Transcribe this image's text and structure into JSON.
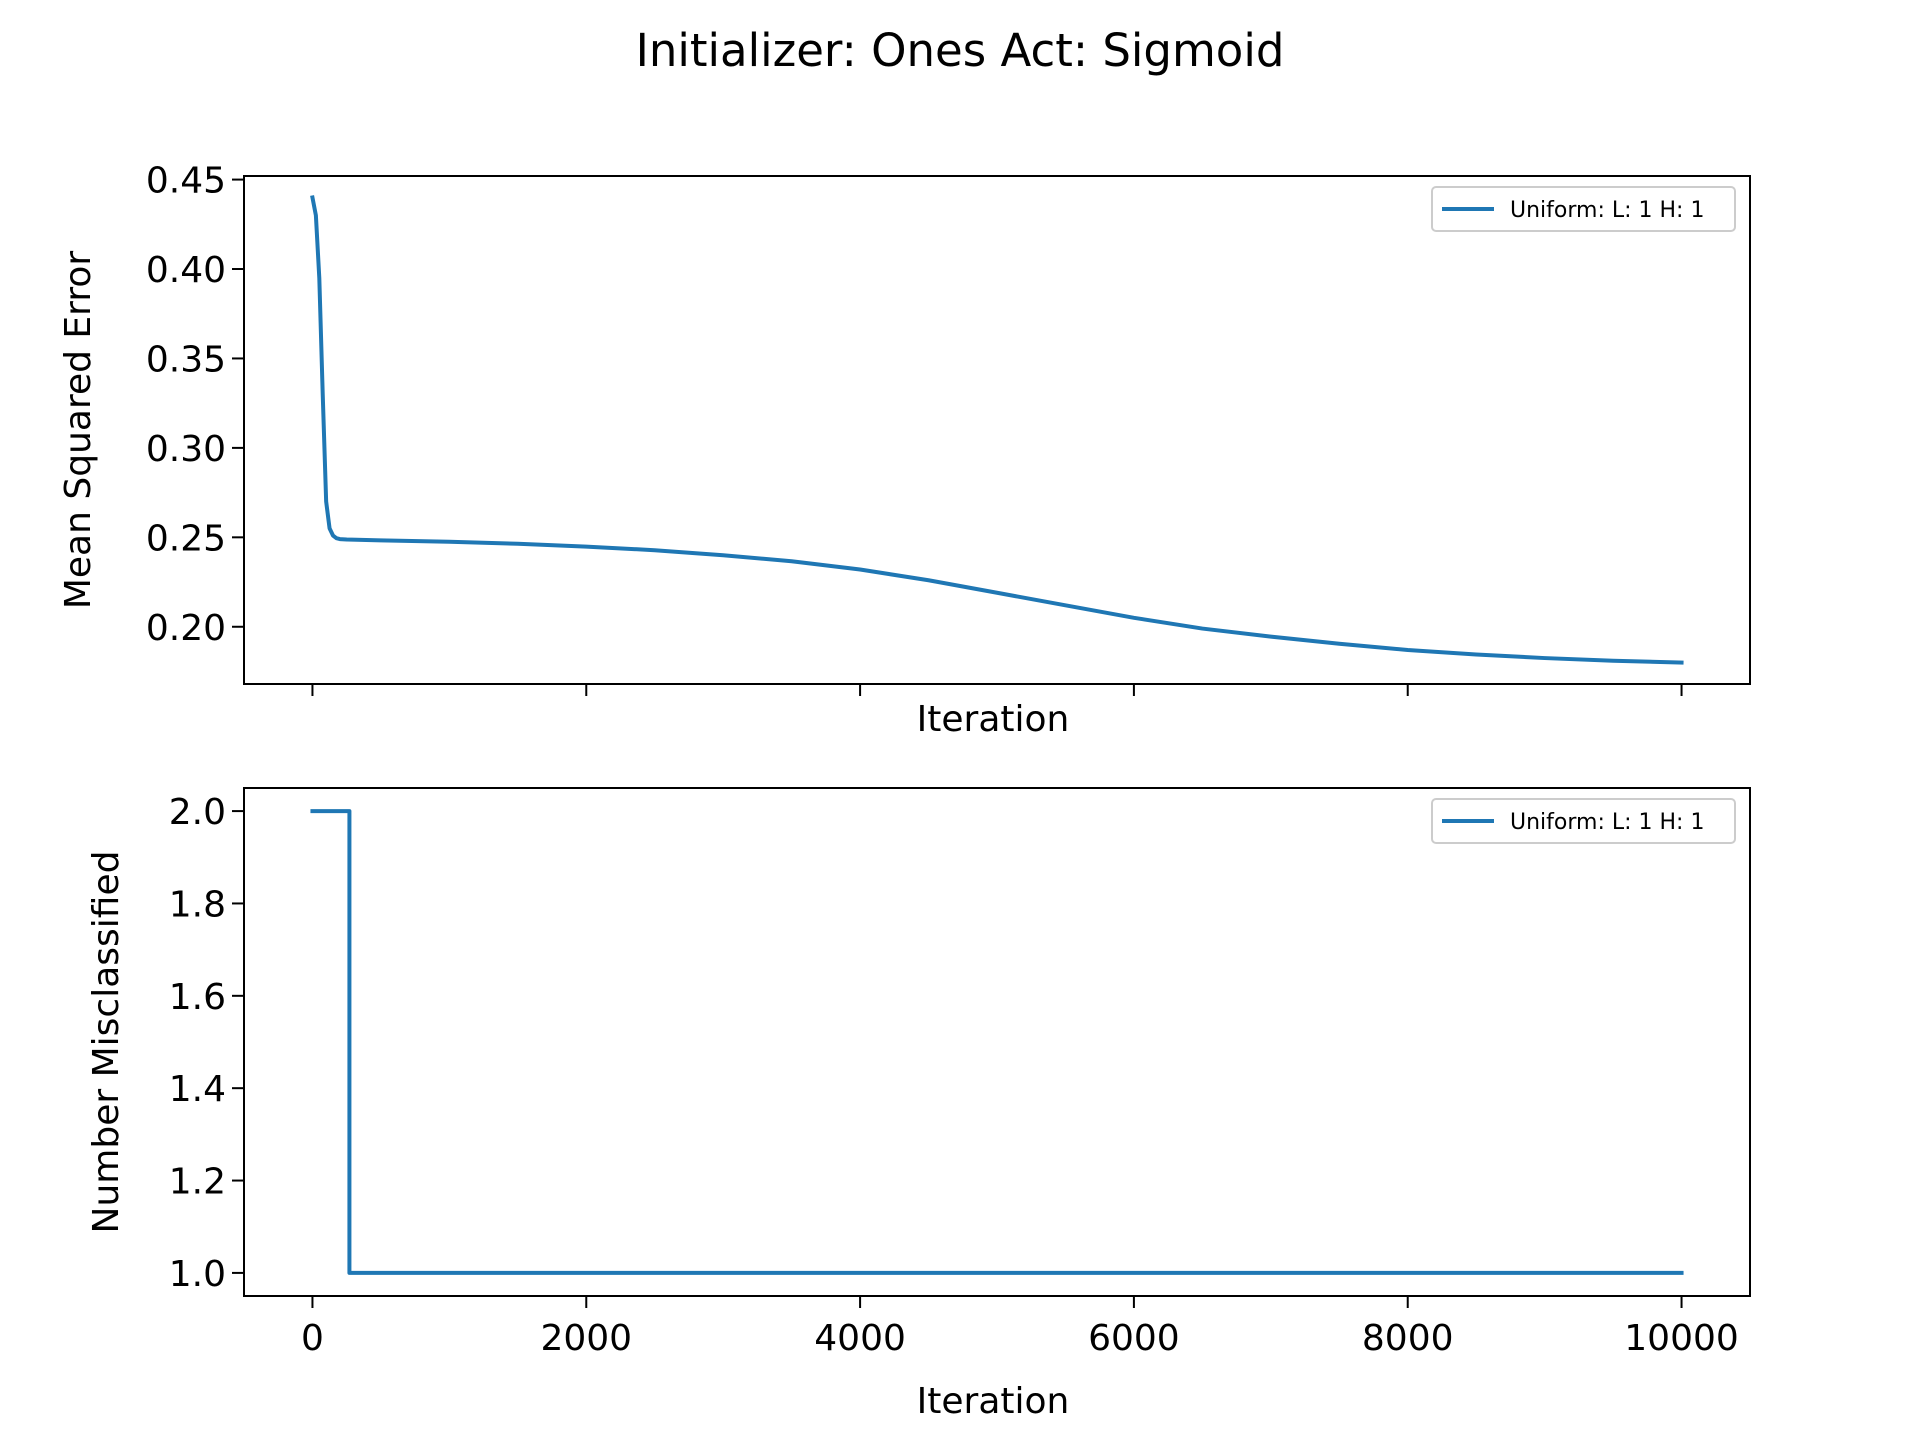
{
  "figure": {
    "title": "Initializer: Ones Act: Sigmoid"
  },
  "colors": {
    "series": "#1f77b4",
    "axes": "#000000",
    "legend_border": "#cccccc"
  },
  "chart_data": [
    {
      "type": "line",
      "xlabel": "Iteration",
      "ylabel": "Mean Squared Error",
      "xlim": [
        -500,
        10500
      ],
      "ylim": [
        0.168,
        0.452
      ],
      "x_ticks": [
        0,
        2000,
        4000,
        6000,
        8000,
        10000
      ],
      "x_tick_labels_visible": false,
      "y_ticks": [
        0.2,
        0.25,
        0.3,
        0.35,
        0.4,
        0.45
      ],
      "y_tick_labels": [
        "0.20",
        "0.25",
        "0.30",
        "0.35",
        "0.40",
        "0.45"
      ],
      "grid": false,
      "legend": "top-right",
      "series": [
        {
          "name": "Uniform: L: 1 H: 1",
          "color": "#1f77b4",
          "x": [
            0,
            25,
            50,
            75,
            100,
            125,
            150,
            175,
            200,
            250,
            500,
            1000,
            1500,
            2000,
            2500,
            3000,
            3500,
            4000,
            4500,
            5000,
            5500,
            6000,
            6500,
            7000,
            7500,
            8000,
            8500,
            9000,
            9500,
            10000
          ],
          "y": [
            0.44,
            0.43,
            0.395,
            0.33,
            0.27,
            0.255,
            0.251,
            0.2495,
            0.249,
            0.2488,
            0.2483,
            0.2475,
            0.2464,
            0.2448,
            0.2428,
            0.24,
            0.2366,
            0.232,
            0.226,
            0.219,
            0.212,
            0.205,
            0.199,
            0.1945,
            0.1905,
            0.187,
            0.1845,
            0.1825,
            0.181,
            0.18
          ]
        }
      ]
    },
    {
      "type": "line",
      "xlabel": "Iteration",
      "ylabel": "Number Misclassified",
      "xlim": [
        -500,
        10500
      ],
      "ylim": [
        0.95,
        2.05
      ],
      "x_ticks": [
        0,
        2000,
        4000,
        6000,
        8000,
        10000
      ],
      "x_tick_labels": [
        "0",
        "2000",
        "4000",
        "6000",
        "8000",
        "10000"
      ],
      "y_ticks": [
        1.0,
        1.2,
        1.4,
        1.6,
        1.8,
        2.0
      ],
      "y_tick_labels": [
        "1.0",
        "1.2",
        "1.4",
        "1.6",
        "1.8",
        "2.0"
      ],
      "grid": false,
      "legend": "top-right",
      "series": [
        {
          "name": "Uniform: L: 1 H: 1",
          "color": "#1f77b4",
          "x": [
            0,
            270,
            270,
            10000
          ],
          "y": [
            2.0,
            2.0,
            1.0,
            1.0
          ]
        }
      ]
    }
  ]
}
